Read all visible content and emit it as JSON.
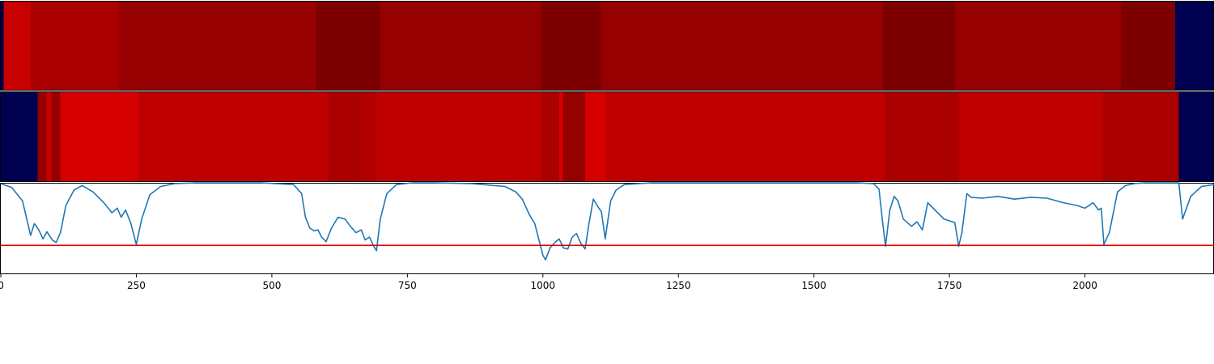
{
  "chart_data": {
    "type": "heatmap",
    "x_range": [
      0,
      2238
    ],
    "heatmap_rows": [
      {
        "segments": [
          {
            "start": 0,
            "end": 5,
            "color": "#000050"
          },
          {
            "start": 5,
            "end": 55,
            "color": "#c80000"
          },
          {
            "start": 55,
            "end": 217,
            "color": "#aa0000"
          },
          {
            "start": 217,
            "end": 582,
            "color": "#960000"
          },
          {
            "start": 582,
            "end": 700,
            "color": "#7c0000"
          },
          {
            "start": 700,
            "end": 997,
            "color": "#960000"
          },
          {
            "start": 997,
            "end": 1106,
            "color": "#7c0000"
          },
          {
            "start": 1106,
            "end": 1627,
            "color": "#960000"
          },
          {
            "start": 1627,
            "end": 1760,
            "color": "#7c0000"
          },
          {
            "start": 1760,
            "end": 2067,
            "color": "#960000"
          },
          {
            "start": 2067,
            "end": 2166,
            "color": "#7c0000"
          },
          {
            "start": 2166,
            "end": 2238,
            "color": "#000050"
          }
        ]
      },
      {
        "segments": [
          {
            "start": 0,
            "end": 68,
            "color": "#000050"
          },
          {
            "start": 68,
            "end": 84,
            "color": "#960000"
          },
          {
            "start": 84,
            "end": 93,
            "color": "#c80000"
          },
          {
            "start": 93,
            "end": 110,
            "color": "#960000"
          },
          {
            "start": 110,
            "end": 252,
            "color": "#d70000"
          },
          {
            "start": 252,
            "end": 605,
            "color": "#be0000"
          },
          {
            "start": 605,
            "end": 665,
            "color": "#aa0000"
          },
          {
            "start": 665,
            "end": 693,
            "color": "#b00000"
          },
          {
            "start": 693,
            "end": 997,
            "color": "#be0000"
          },
          {
            "start": 997,
            "end": 1030,
            "color": "#aa0000"
          },
          {
            "start": 1030,
            "end": 1037,
            "color": "#d70000"
          },
          {
            "start": 1037,
            "end": 1078,
            "color": "#960000"
          },
          {
            "start": 1078,
            "end": 1115,
            "color": "#d70000"
          },
          {
            "start": 1115,
            "end": 1630,
            "color": "#be0000"
          },
          {
            "start": 1630,
            "end": 1767,
            "color": "#aa0000"
          },
          {
            "start": 1767,
            "end": 2033,
            "color": "#be0000"
          },
          {
            "start": 2033,
            "end": 2173,
            "color": "#aa0000"
          },
          {
            "start": 2173,
            "end": 2238,
            "color": "#000050"
          }
        ]
      }
    ],
    "line_series": {
      "color": "#1f77b4",
      "ylim": [
        0,
        1
      ],
      "x": [
        0,
        20,
        40,
        55,
        62,
        70,
        78,
        85,
        95,
        102,
        110,
        120,
        135,
        150,
        170,
        190,
        205,
        215,
        222,
        230,
        240,
        250,
        260,
        275,
        295,
        320,
        360,
        420,
        480,
        540,
        555,
        562,
        570,
        578,
        585,
        592,
        600,
        610,
        622,
        635,
        645,
        655,
        665,
        672,
        680,
        688,
        693,
        700,
        712,
        730,
        760,
        800,
        870,
        930,
        950,
        962,
        975,
        985,
        995,
        1000,
        1005,
        1013,
        1022,
        1030,
        1038,
        1046,
        1054,
        1062,
        1070,
        1078,
        1085,
        1093,
        1100,
        1108,
        1115,
        1125,
        1135,
        1150,
        1200,
        1300,
        1400,
        1500,
        1580,
        1610,
        1620,
        1626,
        1632,
        1640,
        1648,
        1655,
        1665,
        1680,
        1690,
        1700,
        1710,
        1720,
        1740,
        1760,
        1767,
        1773,
        1782,
        1790,
        1810,
        1840,
        1870,
        1900,
        1930,
        1960,
        1985,
        2000,
        2015,
        2025,
        2030,
        2035,
        2045,
        2060,
        2075,
        2090,
        2110,
        2160,
        2166,
        2173,
        2180,
        2195,
        2215,
        2238
      ],
      "y": [
        0.99,
        0.95,
        0.8,
        0.42,
        0.55,
        0.48,
        0.38,
        0.46,
        0.37,
        0.34,
        0.45,
        0.75,
        0.92,
        0.97,
        0.9,
        0.78,
        0.67,
        0.72,
        0.62,
        0.7,
        0.55,
        0.32,
        0.6,
        0.87,
        0.96,
        0.99,
        1.0,
        1.0,
        1.0,
        0.98,
        0.88,
        0.62,
        0.5,
        0.47,
        0.48,
        0.4,
        0.35,
        0.5,
        0.62,
        0.6,
        0.52,
        0.45,
        0.48,
        0.37,
        0.4,
        0.3,
        0.25,
        0.6,
        0.88,
        0.98,
        1.0,
        1.0,
        0.99,
        0.96,
        0.9,
        0.82,
        0.65,
        0.55,
        0.32,
        0.2,
        0.15,
        0.28,
        0.34,
        0.38,
        0.28,
        0.27,
        0.4,
        0.44,
        0.33,
        0.27,
        0.55,
        0.82,
        0.75,
        0.68,
        0.38,
        0.8,
        0.92,
        0.98,
        1.0,
        1.0,
        1.0,
        1.0,
        1.0,
        0.99,
        0.93,
        0.6,
        0.3,
        0.7,
        0.85,
        0.8,
        0.6,
        0.52,
        0.57,
        0.48,
        0.78,
        0.72,
        0.6,
        0.56,
        0.3,
        0.45,
        0.88,
        0.84,
        0.83,
        0.85,
        0.82,
        0.84,
        0.83,
        0.78,
        0.75,
        0.72,
        0.78,
        0.7,
        0.72,
        0.32,
        0.45,
        0.9,
        0.97,
        0.99,
        1.0,
        1.0,
        1.0,
        1.0,
        0.6,
        0.85,
        0.96,
        0.98,
        0.98
      ]
    },
    "threshold": {
      "value": 0.31,
      "color": "#e00000"
    },
    "xticks": [
      0,
      250,
      500,
      750,
      1000,
      1250,
      1500,
      1750,
      2000
    ],
    "xtick_labels": [
      "0",
      "250",
      "500",
      "750",
      "1000",
      "1250",
      "1500",
      "1750",
      "2000"
    ],
    "title": "",
    "xlabel": "",
    "ylabel": "",
    "grid": false,
    "legend": "none"
  }
}
